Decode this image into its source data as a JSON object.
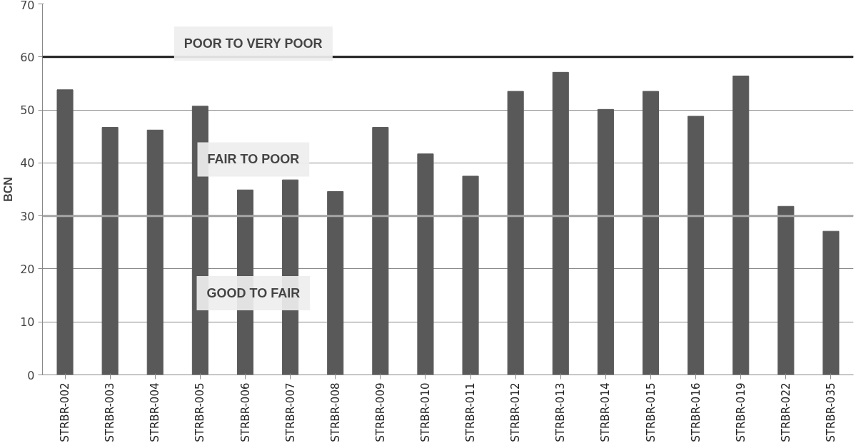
{
  "chart_data": {
    "type": "bar",
    "ylabel": "BCN",
    "categories": [
      "STRBR-002",
      "STRBR-003",
      "STRBR-004",
      "STRBR-005",
      "STRBR-006",
      "STRBR-007",
      "STRBR-008",
      "STRBR-009",
      "STRBR-010",
      "STRBR-011",
      "STRBR-012",
      "STRBR-013",
      "STRBR-014",
      "STRBR-015",
      "STRBR-016",
      "STRBR-019",
      "STRBR-022",
      "STRBR-035"
    ],
    "values": [
      53.8,
      46.7,
      46.2,
      50.7,
      34.9,
      36.8,
      34.6,
      46.7,
      41.7,
      37.5,
      53.5,
      57.1,
      50.1,
      53.5,
      48.8,
      56.4,
      31.8,
      27.1
    ],
    "color": "#595959",
    "ylim": [
      0,
      70
    ],
    "yticks": [
      0,
      10,
      20,
      30,
      40,
      50,
      60,
      70
    ],
    "grid": "y",
    "ref_lines": [
      {
        "axis": "y",
        "value": 60,
        "color": "#1a1a1a"
      },
      {
        "axis": "y",
        "value": 30,
        "color": "#a6a6a6"
      }
    ],
    "annotations": [
      "POOR TO VERY POOR",
      "FAIR TO POOR",
      "GOOD TO FAIR"
    ]
  }
}
